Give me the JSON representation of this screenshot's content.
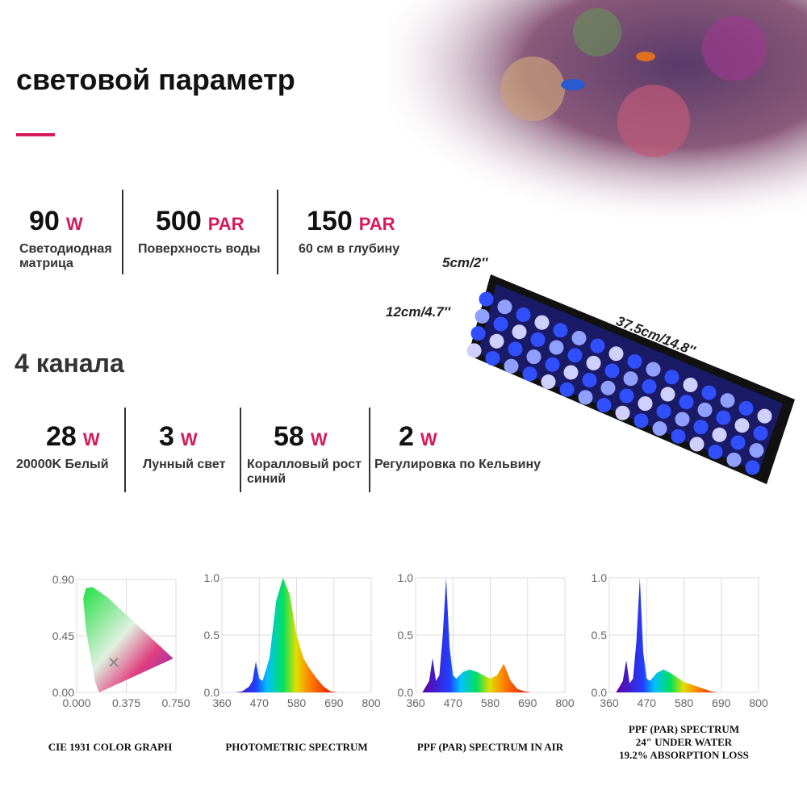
{
  "header": {
    "title": "световой параметр"
  },
  "specs": [
    {
      "value": 90,
      "unit": "W",
      "label": "Светодиодная матрица"
    },
    {
      "value": 500,
      "unit": "PAR",
      "label": "Поверхность воды"
    },
    {
      "value": 150,
      "unit": "PAR",
      "label": "60 см в глубину"
    }
  ],
  "dimensions": {
    "depth": "5cm/2″",
    "width": "12cm/4.7″",
    "length": "37.5cm/14.8″"
  },
  "channels": {
    "title": "4 канала",
    "items": [
      {
        "value": 28,
        "unit": "W",
        "label": "20000K Белый"
      },
      {
        "value": 3,
        "unit": "W",
        "label": "Лунный свет"
      },
      {
        "value": 58,
        "unit": "W",
        "label": "Коралловый рост синий"
      },
      {
        "value": 2,
        "unit": "W",
        "label": "Регулировка по Кельвину"
      }
    ]
  },
  "charts": [
    {
      "type": "cie",
      "caption": [
        "CIE 1931 COLOR GRAPH"
      ],
      "xlim": [
        0,
        0.75
      ],
      "xticks": [
        {
          "value": 0,
          "label": "0.000"
        },
        {
          "value": 0.375,
          "label": "0.375"
        },
        {
          "value": 0.75,
          "label": "0.750"
        }
      ],
      "ylim": [
        0,
        0.9
      ],
      "yticks": [
        {
          "value": 0,
          "label": "0.00"
        },
        {
          "value": 0.45,
          "label": "0.45"
        },
        {
          "value": 0.9,
          "label": "0.90"
        }
      ]
    },
    {
      "type": "spectrum",
      "caption": [
        "PHOTOMETRIC SPECTRUM"
      ],
      "x": [
        380,
        400,
        420,
        440,
        450,
        460,
        470,
        480,
        500,
        520,
        540,
        560,
        580,
        600,
        620,
        640,
        660,
        680,
        700
      ],
      "values": [
        0,
        0,
        0.01,
        0.05,
        0.1,
        0.27,
        0.12,
        0.1,
        0.3,
        0.8,
        1.0,
        0.85,
        0.5,
        0.3,
        0.2,
        0.12,
        0.05,
        0.01,
        0
      ],
      "xlim": [
        360,
        800
      ],
      "xticks": [
        360,
        470,
        580,
        690,
        800
      ],
      "ylim": [
        0,
        1
      ],
      "yticks": [
        {
          "value": 0,
          "label": "0.0"
        },
        {
          "value": 0.5,
          "label": "0.5"
        },
        {
          "value": 1,
          "label": "1.0"
        }
      ]
    },
    {
      "type": "spectrum",
      "caption": [
        "PPF (PAR) SPECTRUM IN AIR"
      ],
      "x": [
        380,
        400,
        410,
        420,
        430,
        440,
        450,
        460,
        470,
        480,
        500,
        520,
        540,
        560,
        580,
        600,
        620,
        640,
        660,
        680,
        700
      ],
      "values": [
        0,
        0.1,
        0.3,
        0.1,
        0.15,
        0.5,
        1.0,
        0.4,
        0.15,
        0.12,
        0.18,
        0.2,
        0.18,
        0.15,
        0.12,
        0.15,
        0.25,
        0.1,
        0.03,
        0.01,
        0
      ],
      "xlim": [
        360,
        800
      ],
      "xticks": [
        360,
        470,
        580,
        690,
        800
      ],
      "ylim": [
        0,
        1
      ],
      "yticks": [
        {
          "value": 0,
          "label": "0.0"
        },
        {
          "value": 0.5,
          "label": "0.5"
        },
        {
          "value": 1,
          "label": "1.0"
        }
      ]
    },
    {
      "type": "spectrum",
      "caption": [
        "PPF (PAR) SPECTRUM",
        "24″ UNDER WATER",
        "19.2% ABSORPTION LOSS"
      ],
      "x": [
        380,
        400,
        410,
        420,
        430,
        440,
        450,
        460,
        470,
        480,
        500,
        520,
        540,
        560,
        580,
        600,
        620,
        640,
        660,
        680,
        700
      ],
      "values": [
        0,
        0.1,
        0.28,
        0.08,
        0.12,
        0.45,
        1.0,
        0.35,
        0.12,
        0.1,
        0.17,
        0.2,
        0.17,
        0.13,
        0.09,
        0.07,
        0.05,
        0.03,
        0.01,
        0,
        0
      ],
      "xlim": [
        360,
        800
      ],
      "xticks": [
        360,
        470,
        580,
        690,
        800
      ],
      "ylim": [
        0,
        1
      ],
      "yticks": [
        {
          "value": 0,
          "label": "0.0"
        },
        {
          "value": 0.5,
          "label": "0.5"
        },
        {
          "value": 1,
          "label": "1.0"
        }
      ]
    }
  ]
}
